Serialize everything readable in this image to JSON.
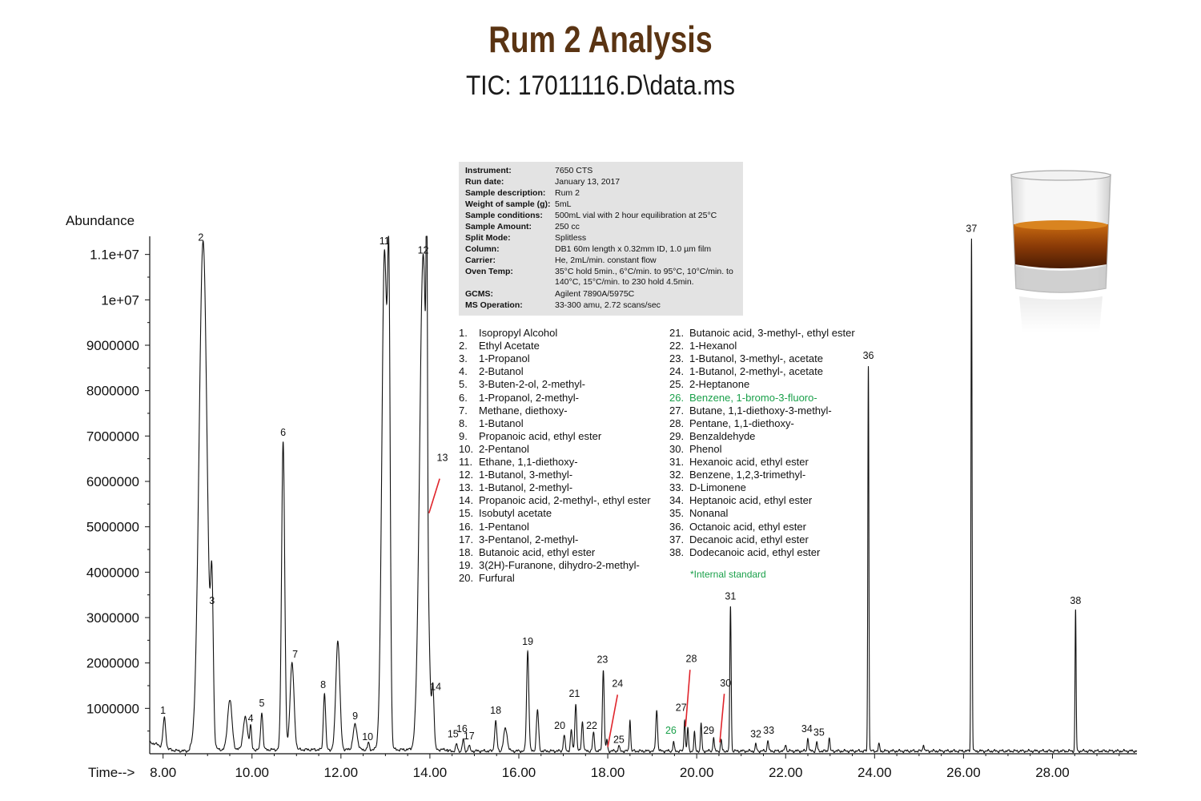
{
  "header": {
    "title": "Rum 2 Analysis",
    "subtitle": "TIC: 17011116.D\\data.ms"
  },
  "info": [
    {
      "label": "Instrument:",
      "value": "7650 CTS"
    },
    {
      "label": "Run date:",
      "value": "January 13, 2017"
    },
    {
      "label": "Sample description:",
      "value": "Rum 2"
    },
    {
      "label": "Weight of sample (g):",
      "value": "5mL"
    },
    {
      "label": "Sample conditions:",
      "value": "500mL vial with 2 hour equilibration at 25°C"
    },
    {
      "label": "Sample Amount:",
      "value": "250 cc"
    },
    {
      "label": "Split Mode:",
      "value": "Splitless"
    },
    {
      "label": "Column:",
      "value": "DB1 60m length x 0.32mm ID, 1.0 µm film"
    },
    {
      "label": "Carrier:",
      "value": "He, 2mL/min. constant flow"
    },
    {
      "label": "Oven Temp:",
      "value": "35°C hold 5min., 6°C/min. to 95°C, 10°C/min. to 140°C, 15°C/min. to 230 hold 4.5min."
    },
    {
      "label": "GCMS:",
      "value": "Agilent 7890A/5975C"
    },
    {
      "label": "MS Operation:",
      "value": "33-300 amu, 2.72 scans/sec"
    }
  ],
  "compounds": [
    {
      "num": "1.",
      "name": "Isopropyl Alcohol"
    },
    {
      "num": "2.",
      "name": "Ethyl Acetate"
    },
    {
      "num": "3.",
      "name": "1-Propanol"
    },
    {
      "num": "4.",
      "name": "2-Butanol"
    },
    {
      "num": "5.",
      "name": "3-Buten-2-ol, 2-methyl-"
    },
    {
      "num": "6.",
      "name": "1-Propanol, 2-methyl-"
    },
    {
      "num": "7.",
      "name": "Methane, diethoxy-"
    },
    {
      "num": "8.",
      "name": "1-Butanol"
    },
    {
      "num": "9.",
      "name": "Propanoic acid, ethyl ester"
    },
    {
      "num": "10.",
      "name": "2-Pentanol"
    },
    {
      "num": "11.",
      "name": "Ethane, 1,1-diethoxy-"
    },
    {
      "num": "12.",
      "name": "1-Butanol, 3-methyl-"
    },
    {
      "num": "13.",
      "name": "1-Butanol, 2-methyl-"
    },
    {
      "num": "14.",
      "name": "Propanoic acid, 2-methyl-, ethyl ester"
    },
    {
      "num": "15.",
      "name": "Isobutyl acetate"
    },
    {
      "num": "16.",
      "name": "1-Pentanol"
    },
    {
      "num": "17.",
      "name": "3-Pentanol, 2-methyl-"
    },
    {
      "num": "18.",
      "name": "Butanoic acid, ethyl ester"
    },
    {
      "num": "19.",
      "name": "3(2H)-Furanone, dihydro-2-methyl-"
    },
    {
      "num": "20.",
      "name": "Furfural"
    },
    {
      "num": "21.",
      "name": "Butanoic acid, 3-methyl-, ethyl ester"
    },
    {
      "num": "22.",
      "name": "1-Hexanol"
    },
    {
      "num": "23.",
      "name": "1-Butanol, 3-methyl-, acetate"
    },
    {
      "num": "24.",
      "name": "1-Butanol, 2-methyl-, acetate"
    },
    {
      "num": "25.",
      "name": "2-Heptanone"
    },
    {
      "num": "26.",
      "name": "Benzene, 1-bromo-3-fluoro-",
      "internal": true
    },
    {
      "num": "27.",
      "name": "Butane, 1,1-diethoxy-3-methyl-"
    },
    {
      "num": "28.",
      "name": "Pentane, 1,1-diethoxy-"
    },
    {
      "num": "29.",
      "name": "Benzaldehyde"
    },
    {
      "num": "30.",
      "name": "Phenol"
    },
    {
      "num": "31.",
      "name": "Hexanoic acid, ethyl ester"
    },
    {
      "num": "32.",
      "name": "Benzene, 1,2,3-trimethyl-"
    },
    {
      "num": "33.",
      "name": "D-Limonene"
    },
    {
      "num": "34.",
      "name": "Heptanoic acid, ethyl ester"
    },
    {
      "num": "35.",
      "name": "Nonanal"
    },
    {
      "num": "36.",
      "name": "Octanoic acid, ethyl ester"
    },
    {
      "num": "37.",
      "name": "Decanoic acid, ethyl ester"
    },
    {
      "num": "38.",
      "name": "Dodecanoic acid, ethyl ester"
    }
  ],
  "note": "*Internal standard",
  "colors": {
    "title": "#5a3413",
    "internal_standard": "#1aa04a",
    "pointer": "#e0242b",
    "info_bg": "#e3e3e3",
    "trace": "#111111"
  },
  "chart_data": {
    "type": "line",
    "ylabel": "Abundance",
    "xlabel": "Time-->",
    "xlim": [
      7.7,
      29.9
    ],
    "ylim": [
      0,
      11400000
    ],
    "x_ticks": [
      "8.00",
      "10.00",
      "12.00",
      "14.00",
      "16.00",
      "18.00",
      "20.00",
      "22.00",
      "24.00",
      "26.00",
      "28.00"
    ],
    "x_tick_values": [
      8,
      10,
      12,
      14,
      16,
      18,
      20,
      22,
      24,
      26,
      28
    ],
    "y_ticks": [
      "1000000",
      "2000000",
      "3000000",
      "4000000",
      "5000000",
      "6000000",
      "7000000",
      "8000000",
      "9000000",
      "1e+07",
      "1.1e+07"
    ],
    "y_tick_values": [
      1000000,
      2000000,
      3000000,
      4000000,
      5000000,
      6000000,
      7000000,
      8000000,
      9000000,
      10000000,
      11000000
    ],
    "baseline": 60000,
    "peaks": [
      {
        "label": "1",
        "rt": 8.03,
        "height": 650000,
        "width": 0.03
      },
      {
        "label": "2",
        "rt": 8.9,
        "height": 11200000,
        "width": 0.09
      },
      {
        "label": "3",
        "rt": 9.1,
        "height": 3100000,
        "width": 0.03
      },
      {
        "label": "",
        "rt": 9.5,
        "height": 1100000,
        "width": 0.05
      },
      {
        "label": "",
        "rt": 9.85,
        "height": 700000,
        "width": 0.05
      },
      {
        "label": "4",
        "rt": 9.97,
        "height": 500000,
        "width": 0.02
      },
      {
        "label": "5",
        "rt": 10.22,
        "height": 820000,
        "width": 0.025
      },
      {
        "label": "6",
        "rt": 10.7,
        "height": 6800000,
        "width": 0.035
      },
      {
        "label": "7",
        "rt": 10.9,
        "height": 1900000,
        "width": 0.045
      },
      {
        "label": "8",
        "rt": 11.63,
        "height": 1250000,
        "width": 0.025
      },
      {
        "label": "",
        "rt": 11.93,
        "height": 2400000,
        "width": 0.045
      },
      {
        "label": "9",
        "rt": 12.32,
        "height": 550000,
        "width": 0.045
      },
      {
        "label": "10",
        "rt": 12.62,
        "height": 150000,
        "width": 0.02
      },
      {
        "label": "11",
        "rt": 12.98,
        "height": 11000000,
        "width": 0.06
      },
      {
        "label": "",
        "rt": 13.08,
        "height": 8200000,
        "width": 0.03
      },
      {
        "label": "12",
        "rt": 13.85,
        "height": 10900000,
        "width": 0.08
      },
      {
        "label": "13",
        "rt": 13.93,
        "height": 6000000,
        "width": 0.015
      },
      {
        "label": "14",
        "rt": 14.07,
        "height": 1200000,
        "width": 0.025
      },
      {
        "label": "15",
        "rt": 14.6,
        "height": 150000,
        "width": 0.02
      },
      {
        "label": "16",
        "rt": 14.75,
        "height": 250000,
        "width": 0.02
      },
      {
        "label": "17",
        "rt": 14.88,
        "height": 120000,
        "width": 0.02
      },
      {
        "label": "18",
        "rt": 15.48,
        "height": 650000,
        "width": 0.025
      },
      {
        "label": "",
        "rt": 15.7,
        "height": 500000,
        "width": 0.04
      },
      {
        "label": "19",
        "rt": 16.2,
        "height": 2200000,
        "width": 0.025
      },
      {
        "label": "",
        "rt": 16.42,
        "height": 900000,
        "width": 0.025
      },
      {
        "label": "20",
        "rt": 17.02,
        "height": 350000,
        "width": 0.02
      },
      {
        "label": "",
        "rt": 17.18,
        "height": 450000,
        "width": 0.02
      },
      {
        "label": "21",
        "rt": 17.28,
        "height": 1050000,
        "width": 0.02
      },
      {
        "label": "",
        "rt": 17.43,
        "height": 650000,
        "width": 0.02
      },
      {
        "label": "22",
        "rt": 17.68,
        "height": 400000,
        "width": 0.02
      },
      {
        "label": "23",
        "rt": 17.9,
        "height": 1800000,
        "width": 0.02
      },
      {
        "label": "24",
        "rt": 17.98,
        "height": 250000,
        "width": 0.015
      },
      {
        "label": "25",
        "rt": 18.25,
        "height": 120000,
        "width": 0.015
      },
      {
        "label": "",
        "rt": 18.5,
        "height": 700000,
        "width": 0.015
      },
      {
        "label": "",
        "rt": 19.1,
        "height": 900000,
        "width": 0.02
      },
      {
        "label": "26",
        "rt": 19.48,
        "height": 200000,
        "width": 0.015
      },
      {
        "label": "27",
        "rt": 19.73,
        "height": 700000,
        "width": 0.015
      },
      {
        "label": "28",
        "rt": 19.8,
        "height": 500000,
        "width": 0.015
      },
      {
        "label": "",
        "rt": 19.95,
        "height": 400000,
        "width": 0.015
      },
      {
        "label": "",
        "rt": 20.1,
        "height": 600000,
        "width": 0.015
      },
      {
        "label": "29",
        "rt": 20.38,
        "height": 300000,
        "width": 0.015
      },
      {
        "label": "30",
        "rt": 20.55,
        "height": 250000,
        "width": 0.015
      },
      {
        "label": "31",
        "rt": 20.76,
        "height": 3200000,
        "width": 0.015
      },
      {
        "label": "32",
        "rt": 21.33,
        "height": 150000,
        "width": 0.015
      },
      {
        "label": "33",
        "rt": 21.6,
        "height": 250000,
        "width": 0.015
      },
      {
        "label": "",
        "rt": 22.0,
        "height": 150000,
        "width": 0.015
      },
      {
        "label": "34",
        "rt": 22.5,
        "height": 300000,
        "width": 0.015
      },
      {
        "label": "35",
        "rt": 22.7,
        "height": 200000,
        "width": 0.015
      },
      {
        "label": "",
        "rt": 22.98,
        "height": 300000,
        "width": 0.015
      },
      {
        "label": "36",
        "rt": 23.86,
        "height": 8500000,
        "width": 0.012
      },
      {
        "label": "",
        "rt": 24.1,
        "height": 150000,
        "width": 0.015
      },
      {
        "label": "",
        "rt": 25.1,
        "height": 150000,
        "width": 0.015
      },
      {
        "label": "37",
        "rt": 26.18,
        "height": 11300000,
        "width": 0.012
      },
      {
        "label": "38",
        "rt": 28.52,
        "height": 3100000,
        "width": 0.012
      }
    ],
    "label_positions": [
      {
        "label": "1",
        "x": 8.0,
        "y": 880000
      },
      {
        "label": "2",
        "x": 8.85,
        "y": 11300000
      },
      {
        "label": "3",
        "x": 9.1,
        "y": 3300000
      },
      {
        "label": "4",
        "x": 9.97,
        "y": 710000
      },
      {
        "label": "5",
        "x": 10.22,
        "y": 1040000
      },
      {
        "label": "6",
        "x": 10.7,
        "y": 7010000
      },
      {
        "label": "7",
        "x": 10.97,
        "y": 2120000
      },
      {
        "label": "8",
        "x": 11.6,
        "y": 1450000
      },
      {
        "label": "9",
        "x": 12.32,
        "y": 760000
      },
      {
        "label": "10",
        "x": 12.6,
        "y": 300000
      },
      {
        "label": "11",
        "x": 12.98,
        "y": 11220000
      },
      {
        "label": "12",
        "x": 13.85,
        "y": 11020000
      },
      {
        "label": "13",
        "x": 14.28,
        "y": 6450000
      },
      {
        "label": "14",
        "x": 14.13,
        "y": 1400000
      },
      {
        "label": "15",
        "x": 14.52,
        "y": 360000
      },
      {
        "label": "16",
        "x": 14.72,
        "y": 480000
      },
      {
        "label": "17",
        "x": 14.88,
        "y": 320000
      },
      {
        "label": "18",
        "x": 15.48,
        "y": 880000
      },
      {
        "label": "19",
        "x": 16.2,
        "y": 2400000
      },
      {
        "label": "20",
        "x": 16.92,
        "y": 550000
      },
      {
        "label": "21",
        "x": 17.25,
        "y": 1250000
      },
      {
        "label": "22",
        "x": 17.64,
        "y": 550000
      },
      {
        "label": "23",
        "x": 17.88,
        "y": 2000000
      },
      {
        "label": "24",
        "x": 18.22,
        "y": 1470000
      },
      {
        "label": "25",
        "x": 18.25,
        "y": 240000
      },
      {
        "label": "26",
        "x": 19.42,
        "y": 440000
      },
      {
        "label": "27",
        "x": 19.65,
        "y": 940000
      },
      {
        "label": "28",
        "x": 19.88,
        "y": 2020000
      },
      {
        "label": "29",
        "x": 20.27,
        "y": 440000
      },
      {
        "label": "30",
        "x": 20.65,
        "y": 1480000
      },
      {
        "label": "31",
        "x": 20.76,
        "y": 3400000
      },
      {
        "label": "32",
        "x": 21.33,
        "y": 360000
      },
      {
        "label": "33",
        "x": 21.62,
        "y": 440000
      },
      {
        "label": "34",
        "x": 22.48,
        "y": 480000
      },
      {
        "label": "35",
        "x": 22.75,
        "y": 400000
      },
      {
        "label": "36",
        "x": 23.86,
        "y": 8700000
      },
      {
        "label": "37",
        "x": 26.18,
        "y": 11500000
      },
      {
        "label": "38",
        "x": 28.52,
        "y": 3300000
      }
    ],
    "pointers": [
      {
        "label": "13",
        "from": [
          14.22,
          6060000
        ],
        "to": [
          13.98,
          5300000
        ]
      },
      {
        "label": "24",
        "from": [
          18.22,
          1300000
        ],
        "to": [
          18.0,
          150000
        ]
      },
      {
        "label": "28",
        "from": [
          19.85,
          1850000
        ],
        "to": [
          19.75,
          600000
        ]
      },
      {
        "label": "30",
        "from": [
          20.62,
          1320000
        ],
        "to": [
          20.52,
          250000
        ]
      }
    ]
  }
}
